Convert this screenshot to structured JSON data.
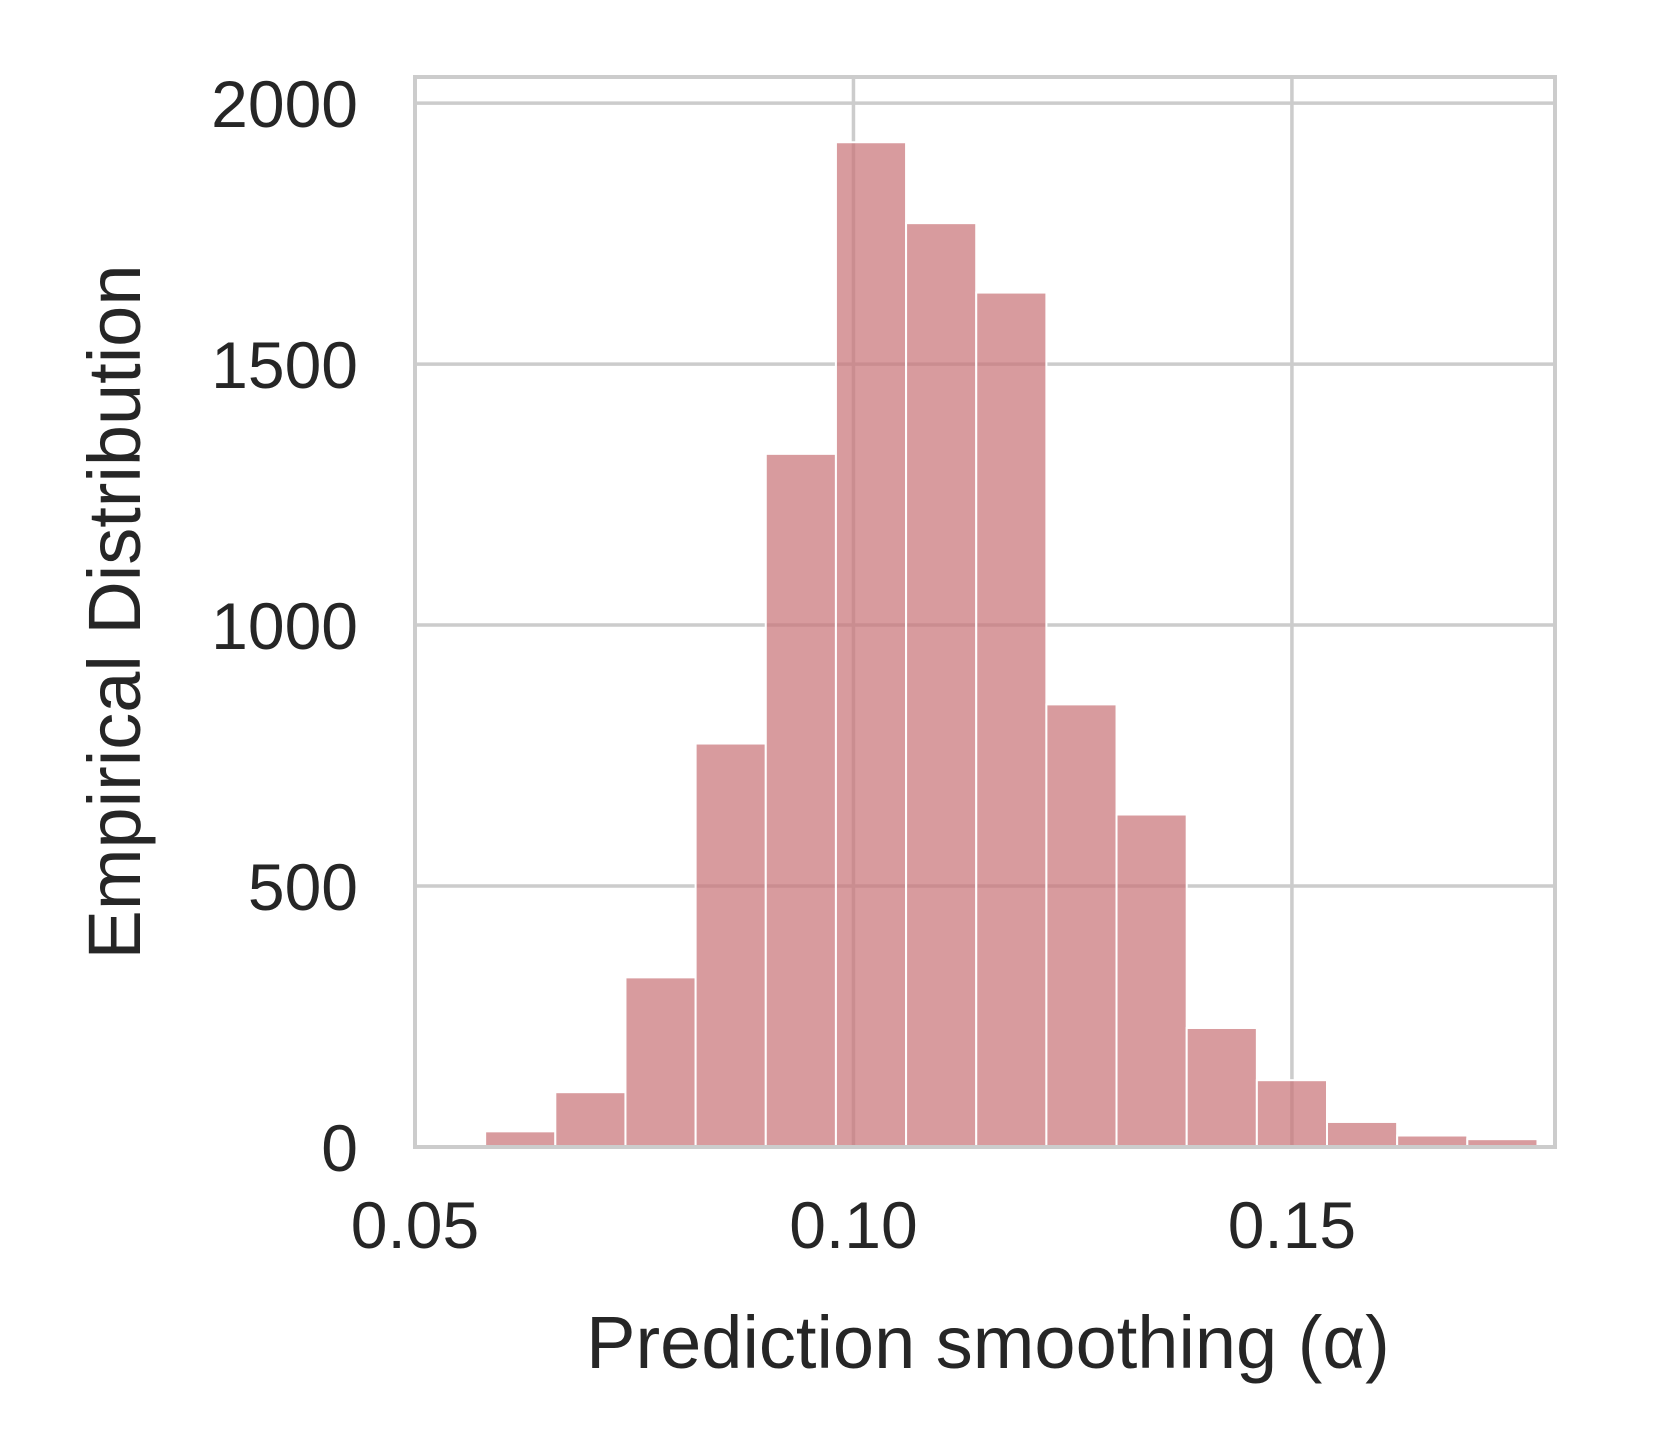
{
  "chart_data": {
    "type": "bar",
    "xlabel": "Prediction smoothing (α)",
    "ylabel": "Empirical Distribution",
    "xlim": [
      0.05,
      0.18
    ],
    "ylim": [
      0,
      2050
    ],
    "xticks": [
      0.05,
      0.1,
      0.15
    ],
    "xtick_labels": [
      "0.05",
      "0.10",
      "0.15"
    ],
    "yticks": [
      0,
      500,
      1000,
      1500,
      2000
    ],
    "ytick_labels": [
      "0",
      "500",
      "1000",
      "1500",
      "2000"
    ],
    "grid": true,
    "bar_color": "#c97479",
    "bins": [
      {
        "x0": 0.05,
        "x1": 0.058,
        "count": 0
      },
      {
        "x0": 0.058,
        "x1": 0.066,
        "count": 30
      },
      {
        "x0": 0.066,
        "x1": 0.074,
        "count": 105
      },
      {
        "x0": 0.074,
        "x1": 0.082,
        "count": 325
      },
      {
        "x0": 0.082,
        "x1": 0.09,
        "count": 773
      },
      {
        "x0": 0.09,
        "x1": 0.098,
        "count": 1328
      },
      {
        "x0": 0.098,
        "x1": 0.106,
        "count": 1925
      },
      {
        "x0": 0.106,
        "x1": 0.114,
        "count": 1770
      },
      {
        "x0": 0.114,
        "x1": 0.122,
        "count": 1637
      },
      {
        "x0": 0.122,
        "x1": 0.13,
        "count": 848
      },
      {
        "x0": 0.13,
        "x1": 0.138,
        "count": 637
      },
      {
        "x0": 0.138,
        "x1": 0.146,
        "count": 228
      },
      {
        "x0": 0.146,
        "x1": 0.154,
        "count": 128
      },
      {
        "x0": 0.154,
        "x1": 0.162,
        "count": 48
      },
      {
        "x0": 0.162,
        "x1": 0.17,
        "count": 22
      },
      {
        "x0": 0.17,
        "x1": 0.178,
        "count": 15
      }
    ]
  }
}
